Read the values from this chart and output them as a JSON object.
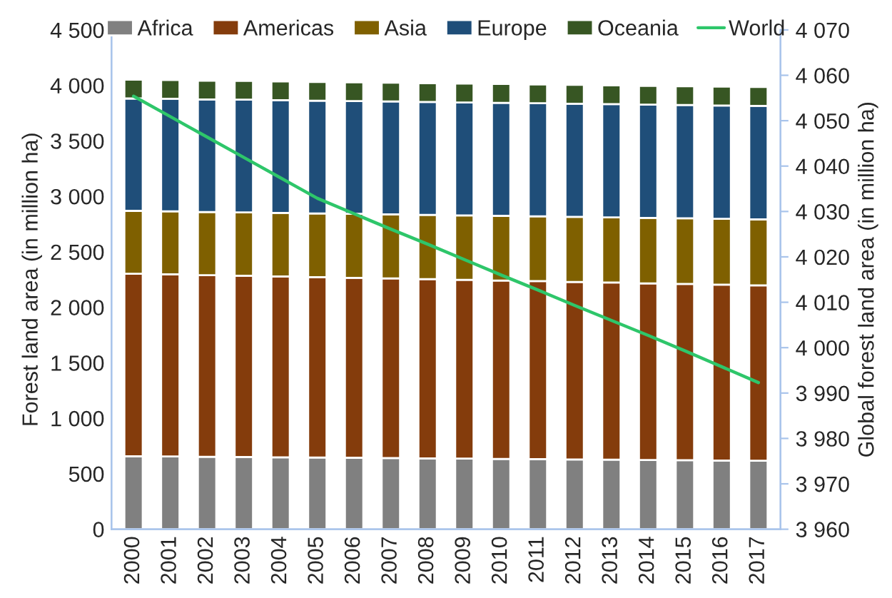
{
  "chart_data": {
    "type": "bar",
    "stacked": true,
    "ylabel": "Forest land area (in million ha)",
    "y2label": "Global forest land area (in million ha)",
    "categories": [
      "2000",
      "2001",
      "2002",
      "2003",
      "2004",
      "2005",
      "2006",
      "2007",
      "2008",
      "2009",
      "2010",
      "2011",
      "2012",
      "2013",
      "2014",
      "2015",
      "2016",
      "2017"
    ],
    "series": [
      {
        "name": "Africa",
        "color": "#808080",
        "values": [
          658,
          656,
          653,
          651,
          648,
          646,
          644,
          641,
          639,
          636,
          634,
          632,
          629,
          627,
          624,
          622,
          619,
          617
        ]
      },
      {
        "name": "Americas",
        "color": "#843c0c",
        "values": [
          1645,
          1641,
          1637,
          1634,
          1630,
          1626,
          1622,
          1619,
          1615,
          1611,
          1607,
          1604,
          1600,
          1596,
          1592,
          1589,
          1585,
          1581
        ]
      },
      {
        "name": "Asia",
        "color": "#7f6000",
        "values": [
          566,
          568,
          569,
          571,
          573,
          574,
          576,
          578,
          579,
          581,
          583,
          584,
          586,
          588,
          589,
          591,
          593,
          594
        ]
      },
      {
        "name": "Europe",
        "color": "#1f4e79",
        "values": [
          1013,
          1014,
          1014,
          1015,
          1015,
          1016,
          1017,
          1017,
          1018,
          1018,
          1019,
          1019,
          1020,
          1020,
          1021,
          1021,
          1022,
          1023
        ]
      },
      {
        "name": "Oceania",
        "color": "#375623",
        "values": [
          169,
          169,
          169,
          169,
          169,
          169,
          169,
          169,
          169,
          170,
          170,
          170,
          170,
          170,
          170,
          170,
          170,
          170
        ]
      },
      {
        "name": "World",
        "type": "line",
        "axis": "y2",
        "color": "#2ec66a",
        "values": [
          4055.4,
          4050.9,
          4046.4,
          4041.9,
          4037.4,
          4032.9,
          4029.5,
          4026.1,
          4022.8,
          4019.4,
          4016.0,
          4012.7,
          4009.3,
          4006.0,
          4002.7,
          3999.3,
          3995.8,
          3992.3
        ]
      }
    ],
    "ylim": [
      0,
      4500
    ],
    "yticks": [
      0,
      500,
      {
        "value": 1000,
        "label": "1 000"
      },
      {
        "value": 1500,
        "label": "1 500"
      },
      {
        "value": 2000,
        "label": "2 000"
      },
      {
        "value": 2500,
        "label": "2 500"
      },
      {
        "value": 3000,
        "label": "3 000"
      },
      {
        "value": 3500,
        "label": "3 500"
      },
      {
        "value": 4000,
        "label": "4 000"
      },
      {
        "value": 4500,
        "label": "4 500"
      }
    ],
    "y2lim": [
      3960,
      4070
    ],
    "y2ticks": [
      {
        "value": 3960,
        "label": "3 960"
      },
      {
        "value": 3970,
        "label": "3 970"
      },
      {
        "value": 3980,
        "label": "3 980"
      },
      {
        "value": 3990,
        "label": "3 990"
      },
      {
        "value": 4000,
        "label": "4 000"
      },
      {
        "value": 4010,
        "label": "4 010"
      },
      {
        "value": 4020,
        "label": "4 020"
      },
      {
        "value": 4030,
        "label": "4 030"
      },
      {
        "value": 4040,
        "label": "4 040"
      },
      {
        "value": 4050,
        "label": "4 050"
      },
      {
        "value": 4060,
        "label": "4 060"
      },
      {
        "value": 4070,
        "label": "4 070"
      }
    ],
    "legend": "top",
    "grid": false
  }
}
